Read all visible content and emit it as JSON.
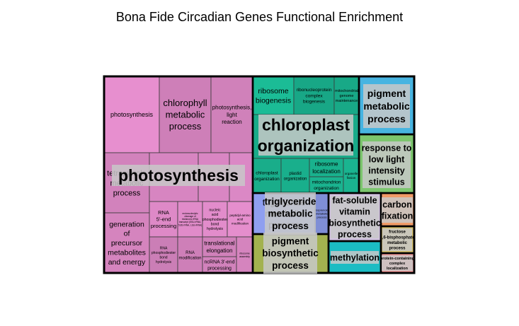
{
  "title": "Bona Fide Circadian Genes Functional Enrichment",
  "chart_data": {
    "type": "treemap",
    "title": "Bona Fide Circadian Genes Functional Enrichment",
    "groups": [
      {
        "name": "photosynthesis",
        "color": "#e78fcf",
        "children": [
          {
            "name": "photosynthesis",
            "value": 3.6
          },
          {
            "name": "chlorophyll metabolic process",
            "value": 2.6
          },
          {
            "name": "photosynthesis, light reaction",
            "value": 1.9
          },
          {
            "name": "tetrapyrrole metabolic process",
            "value": 2.2
          },
          {
            "name": "generation of precursor metabolites and energy",
            "value": 2.9
          },
          {
            "name": "",
            "value": 1.6
          },
          {
            "name": "",
            "value": 1.1
          },
          {
            "name": "",
            "value": 0.9
          },
          {
            "name": "RNA 5'-end processing",
            "value": 1.2
          },
          {
            "name": "endonucleolytic cleavage of tricistronic rRNA transcript (SSU-rRNA, 5.8S rRNA, LSU-rRNA)",
            "value": 1.5
          },
          {
            "name": "nucleic acid phosphodiester bond hydrolysis",
            "value": 1.1
          },
          {
            "name": "peptidyl-amino acid modification",
            "value": 0.6
          },
          {
            "name": "RNA phosphodiester bond hydrolysis",
            "value": 1.1
          },
          {
            "name": "RNA modification",
            "value": 0.9
          },
          {
            "name": "translational elongation",
            "value": 0.8
          },
          {
            "name": "ncRNA 3'-end processing",
            "value": 0.7
          },
          {
            "name": "ribosome assembly",
            "value": 0.7
          }
        ]
      },
      {
        "name": "chloroplast organization",
        "color": "#1bbc96",
        "children": [
          {
            "name": "ribosome biogenesis",
            "value": 1.3
          },
          {
            "name": "ribonucleoprotein complex biogenesis",
            "value": 1.3
          },
          {
            "name": "mitochondrial genome maintenance",
            "value": 0.8
          },
          {
            "name": "chloroplast organization",
            "value": 2.4
          },
          {
            "name": "chloroplast organization",
            "value": 1.1
          },
          {
            "name": "plastid organization",
            "value": 1.0
          },
          {
            "name": "ribosome localization",
            "value": 0.8
          },
          {
            "name": "mitochondrion organization",
            "value": 0.6
          },
          {
            "name": "organelle fission",
            "value": 0.5
          }
        ]
      },
      {
        "name": "pigment metabolic process",
        "color": "#47b4e1",
        "children": [
          {
            "name": "pigment metabolic process",
            "value": 2.0
          }
        ]
      },
      {
        "name": "response to low light intensity stimulus",
        "color": "#7cc66e",
        "children": [
          {
            "name": "response to low light intensity stimulus",
            "value": 2.2
          }
        ]
      },
      {
        "name": "triglyceride metabolic process",
        "color": "#8f9ff0",
        "children": [
          {
            "name": "triglyceride metabolic process",
            "value": 1.4
          },
          {
            "name": "isoprenoid metabolic process",
            "value": 0.4
          }
        ]
      },
      {
        "name": "pigment biosynthetic process",
        "color": "#a3b24f",
        "children": [
          {
            "name": "pigment biosynthetic process",
            "value": 2.1
          }
        ]
      },
      {
        "name": "fat-soluble vitamin biosynthetic process",
        "color": "#d2c2e0",
        "children": [
          {
            "name": "fat-soluble vitamin biosynthetic process",
            "value": 1.7
          }
        ]
      },
      {
        "name": "methylation",
        "color": "#1bbcc3",
        "children": [
          {
            "name": "methylation",
            "value": 0.9
          }
        ]
      },
      {
        "name": "carbon fixation",
        "color": "#ef9a67",
        "children": [
          {
            "name": "carbon fixation",
            "value": 0.7
          }
        ]
      },
      {
        "name": "fructose 1,6-bisphosphate metabolic process",
        "color": "#d8c26d",
        "children": [
          {
            "name": "fructose 1,6-bisphosphate metabolic process",
            "value": 0.6
          }
        ]
      },
      {
        "name": "protein-containing complex localization",
        "color": "#f19a9a",
        "children": [
          {
            "name": "protein-containing complex localization",
            "value": 0.5
          }
        ]
      }
    ]
  }
}
